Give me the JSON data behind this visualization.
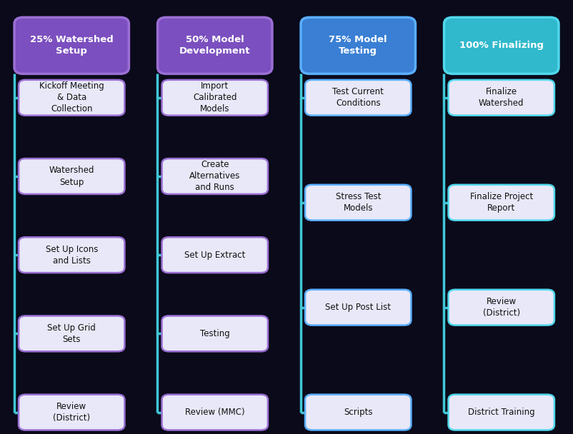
{
  "figure_width": 8.02,
  "figure_height": 6.08,
  "background_color": "#0a0a1a",
  "columns": [
    {
      "header": "25% Watershed\nSetup",
      "header_color_top": "#9B6FD4",
      "header_color": "#7B4FBF",
      "header_border": "#9B6FD4",
      "connector_color": "#40C8D8",
      "item_border": "#9B6FD4",
      "items": [
        "Kickoff Meeting\n& Data\nCollection",
        "Watershed\nSetup",
        "Set Up Icons\nand Lists",
        "Set Up Grid\nSets",
        "Review\n(District)"
      ]
    },
    {
      "header": "50% Model\nDevelopment",
      "header_color": "#7B4FBF",
      "header_border": "#9B6FD4",
      "connector_color": "#40C8D8",
      "item_border": "#9B6FD4",
      "items": [
        "Import\nCalibrated\nModels",
        "Create\nAlternatives\nand Runs",
        "Set Up Extract",
        "Testing",
        "Review (MMC)"
      ]
    },
    {
      "header": "75% Model\nTesting",
      "header_color": "#3A7FD4",
      "header_border": "#5AAFFF",
      "connector_color": "#40C8D8",
      "item_border": "#5AAFFF",
      "items": [
        "Test Current\nConditions",
        "Stress Test\nModels",
        "Set Up Post List",
        "Scripts"
      ]
    },
    {
      "header": "100% Finalizing",
      "header_color": "#30B8CC",
      "header_border": "#50D8EC",
      "connector_color": "#40C8D8",
      "item_border": "#50D8EC",
      "items": [
        "Finalize\nWatershed",
        "Finalize Project\nReport",
        "Review\n(District)",
        "District Training"
      ]
    }
  ],
  "box_facecolor": "#e8e8f8",
  "box_edgecolor": "#9B6FD4",
  "text_color": "#111111",
  "header_text_color": "#ffffff"
}
